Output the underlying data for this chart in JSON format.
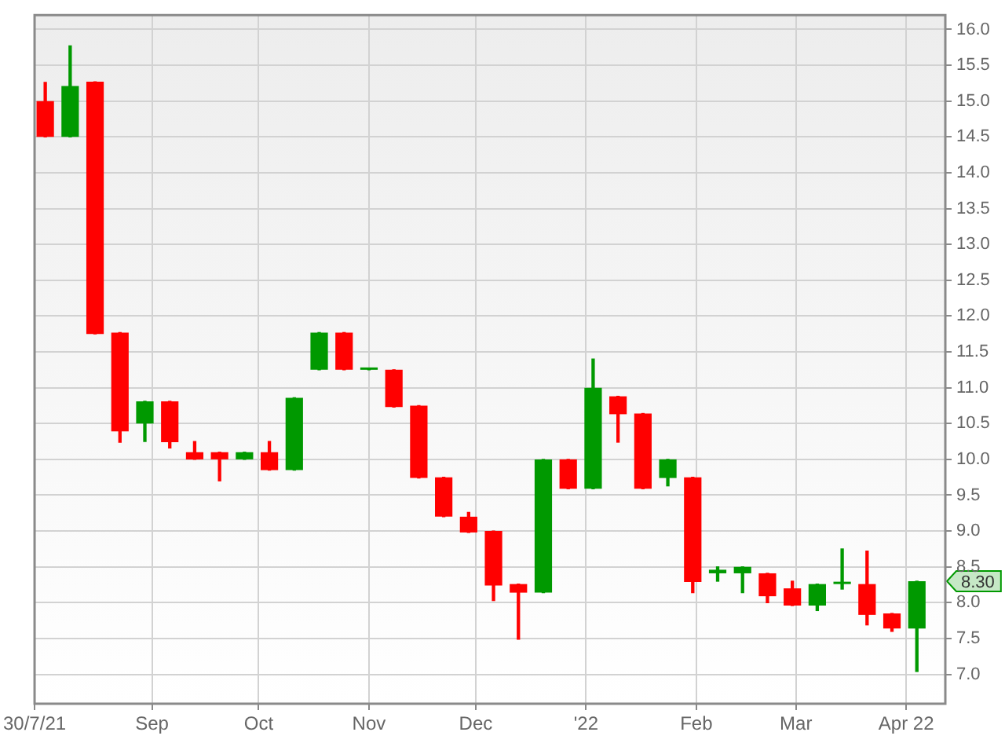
{
  "chart_data": {
    "type": "candlestick",
    "x": [
      "2021-08-02",
      "2021-08-09",
      "2021-08-16",
      "2021-08-23",
      "2021-08-30",
      "2021-09-06",
      "2021-09-13",
      "2021-09-20",
      "2021-09-27",
      "2021-10-04",
      "2021-10-11",
      "2021-10-18",
      "2021-10-25",
      "2021-11-01",
      "2021-11-08",
      "2021-11-15",
      "2021-11-22",
      "2021-11-29",
      "2021-12-06",
      "2021-12-13",
      "2021-12-20",
      "2021-12-27",
      "2022-01-03",
      "2022-01-10",
      "2022-01-17",
      "2022-01-24",
      "2022-01-31",
      "2022-02-07",
      "2022-02-14",
      "2022-02-21",
      "2022-02-28",
      "2022-03-07",
      "2022-03-14",
      "2022-03-21",
      "2022-03-28",
      "2022-04-04"
    ],
    "ohlc": [
      [
        15.0,
        15.26,
        14.5,
        14.5
      ],
      [
        14.5,
        15.77,
        14.5,
        15.21
      ],
      [
        15.27,
        15.27,
        11.75,
        11.75
      ],
      [
        11.77,
        11.77,
        10.24,
        10.39
      ],
      [
        10.5,
        10.81,
        10.25,
        10.81
      ],
      [
        10.81,
        10.81,
        10.16,
        10.24
      ],
      [
        10.1,
        10.25,
        10.0,
        10.0
      ],
      [
        10.1,
        10.1,
        9.7,
        10.0
      ],
      [
        10.0,
        10.1,
        10.0,
        10.1
      ],
      [
        10.1,
        10.25,
        9.85,
        9.85
      ],
      [
        9.85,
        10.86,
        9.85,
        10.86
      ],
      [
        11.25,
        11.77,
        11.25,
        11.77
      ],
      [
        11.77,
        11.77,
        11.25,
        11.25
      ],
      [
        11.25,
        11.26,
        11.25,
        11.26
      ],
      [
        11.25,
        11.25,
        10.73,
        10.73
      ],
      [
        10.75,
        10.75,
        9.74,
        9.74
      ],
      [
        9.75,
        9.75,
        9.2,
        9.2
      ],
      [
        9.2,
        9.26,
        8.98,
        8.98
      ],
      [
        9.0,
        9.0,
        8.03,
        8.24
      ],
      [
        8.26,
        8.26,
        7.49,
        8.14
      ],
      [
        8.14,
        10.0,
        8.14,
        10.0
      ],
      [
        10.0,
        10.0,
        9.59,
        9.59
      ],
      [
        9.59,
        11.4,
        9.59,
        11.0
      ],
      [
        10.88,
        10.88,
        10.24,
        10.63
      ],
      [
        10.64,
        10.64,
        9.59,
        9.59
      ],
      [
        9.74,
        10.0,
        9.63,
        10.0
      ],
      [
        9.75,
        9.75,
        8.14,
        8.29
      ],
      [
        8.41,
        8.5,
        8.3,
        8.46
      ],
      [
        8.41,
        8.5,
        8.14,
        8.5
      ],
      [
        8.41,
        8.41,
        8.0,
        8.09
      ],
      [
        8.2,
        8.3,
        7.96,
        7.96
      ],
      [
        7.96,
        8.26,
        7.89,
        8.26
      ],
      [
        8.26,
        8.75,
        8.19,
        8.26
      ],
      [
        8.26,
        8.72,
        7.69,
        7.83
      ],
      [
        7.85,
        7.85,
        7.6,
        7.64
      ],
      [
        7.64,
        8.3,
        7.04,
        8.3
      ]
    ],
    "colors": [
      "#ff0000",
      "#009900",
      "#ff0000",
      "#ff0000",
      "#009900",
      "#ff0000",
      "#ff0000",
      "#ff0000",
      "#009900",
      "#ff0000",
      "#009900",
      "#009900",
      "#ff0000",
      "#009900",
      "#ff0000",
      "#ff0000",
      "#ff0000",
      "#ff0000",
      "#ff0000",
      "#ff0000",
      "#009900",
      "#ff0000",
      "#009900",
      "#ff0000",
      "#ff0000",
      "#009900",
      "#ff0000",
      "#009900",
      "#009900",
      "#ff0000",
      "#ff0000",
      "#009900",
      "#009900",
      "#ff0000",
      "#ff0000",
      "#009900"
    ],
    "xlim": [
      "2021-07-30",
      "2022-04-12"
    ],
    "xticks": [
      {
        "value": "2021-07-30",
        "label": "30/7/21"
      },
      {
        "value": "2021-09-01",
        "label": "Sep"
      },
      {
        "value": "2021-10-01",
        "label": "Oct"
      },
      {
        "value": "2021-11-01",
        "label": "Nov"
      },
      {
        "value": "2021-12-01",
        "label": "Dec"
      },
      {
        "value": "2022-01-01",
        "label": "'22"
      },
      {
        "value": "2022-02-01",
        "label": "Feb"
      },
      {
        "value": "2022-03-01",
        "label": "Mar"
      },
      {
        "value": "2022-04-01",
        "label": "Apr 22"
      }
    ],
    "ylim": [
      6.59,
      16.2
    ],
    "yticks": [
      {
        "value": 7,
        "label": "7.0"
      },
      7.5,
      {
        "value": 8,
        "label": "8.0"
      },
      8.5,
      {
        "value": 9,
        "label": "9.0"
      },
      9.5,
      {
        "value": 10,
        "label": "10.0"
      },
      10.5,
      {
        "value": 11,
        "label": "11.0"
      },
      11.5,
      {
        "value": 12,
        "label": "12.0"
      },
      12.5,
      {
        "value": 13,
        "label": "13.0"
      },
      13.5,
      {
        "value": 14,
        "label": "14.0"
      },
      14.5,
      {
        "value": 15,
        "label": "15.0"
      },
      15.5,
      {
        "value": 16,
        "label": "16.0"
      }
    ],
    "grid": true,
    "annotations": [
      "8.30"
    ]
  }
}
